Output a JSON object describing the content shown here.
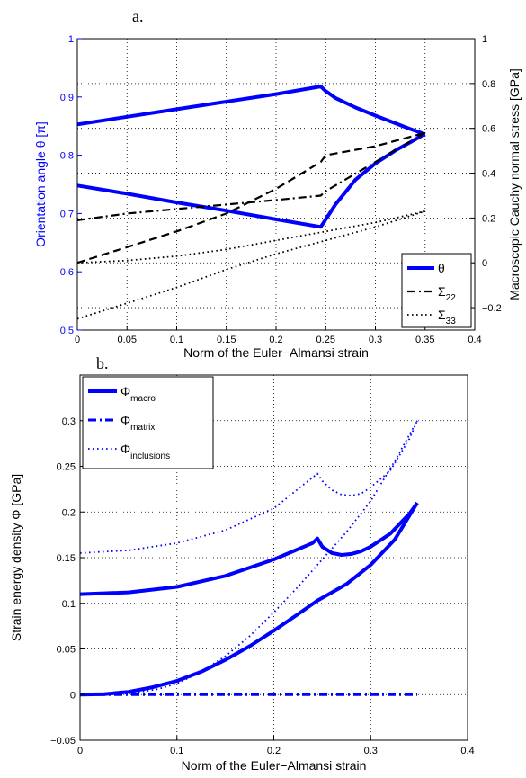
{
  "panels": {
    "a": {
      "letter": "a."
    },
    "b": {
      "letter": "b."
    }
  },
  "colors": {
    "blue": "#0000ff",
    "black": "#000000"
  },
  "chart_data": [
    {
      "type": "line",
      "panel": "a",
      "xlabel": "Norm of the Euler−Almansi strain",
      "ylabel_left": "Orientation angle  θ [π]",
      "ylabel_right": "Macroscopic Cauchy normal stress [GPa]",
      "xlim": [
        0,
        0.4
      ],
      "ylim_left": [
        0.5,
        1
      ],
      "ylim_right": [
        -0.3,
        1
      ],
      "x_ticks": [
        "0",
        "0.05",
        "0.1",
        "0.15",
        "0.2",
        "0.25",
        "0.3",
        "0.35",
        "0.4"
      ],
      "y_left_ticks": [
        "0.5",
        "0.6",
        "0.7",
        "0.8",
        "0.9",
        "1"
      ],
      "y_right_ticks": [
        "−0.2",
        "0",
        "0.2",
        "0.4",
        "0.6",
        "0.8",
        "1"
      ],
      "grid": "dotted",
      "legend_position": "bottom-right",
      "legend": [
        {
          "label": "θ",
          "sub": ""
        },
        {
          "label": "Σ",
          "sub": "22"
        },
        {
          "label": "Σ",
          "sub": "33"
        }
      ],
      "series": [
        {
          "name": "θ branch 1",
          "axis": "left",
          "color": "#0000ff",
          "style": "solid",
          "width": 4,
          "x": [
            0,
            0.05,
            0.1,
            0.15,
            0.2,
            0.245,
            0.25,
            0.26,
            0.28,
            0.3,
            0.32,
            0.335,
            0.345,
            0.35
          ],
          "y": [
            0.853,
            0.866,
            0.879,
            0.892,
            0.905,
            0.918,
            0.91,
            0.898,
            0.882,
            0.868,
            0.855,
            0.845,
            0.839,
            0.836
          ]
        },
        {
          "name": "θ branch 2",
          "axis": "left",
          "color": "#0000ff",
          "style": "solid",
          "width": 4,
          "x": [
            0,
            0.05,
            0.1,
            0.15,
            0.2,
            0.245,
            0.25,
            0.26,
            0.28,
            0.3,
            0.32,
            0.335,
            0.345,
            0.35
          ],
          "y": [
            0.748,
            0.734,
            0.719,
            0.705,
            0.69,
            0.677,
            0.69,
            0.716,
            0.758,
            0.786,
            0.808,
            0.822,
            0.832,
            0.836
          ]
        },
        {
          "name": "Σ 22 a",
          "axis": "right",
          "color": "#000000",
          "style": "dashdot",
          "width": 2.2,
          "x": [
            0,
            0.05,
            0.1,
            0.15,
            0.2,
            0.245,
            0.25,
            0.3,
            0.35
          ],
          "y": [
            0.19,
            0.22,
            0.24,
            0.26,
            0.28,
            0.3,
            0.32,
            0.45,
            0.58
          ]
        },
        {
          "name": "Σ 22 b",
          "axis": "right",
          "color": "#000000",
          "style": "dashed",
          "width": 2.2,
          "x": [
            0,
            0.05,
            0.1,
            0.15,
            0.2,
            0.245,
            0.25,
            0.3,
            0.35
          ],
          "y": [
            0.0,
            0.07,
            0.14,
            0.22,
            0.33,
            0.45,
            0.48,
            0.52,
            0.58
          ]
        },
        {
          "name": "Σ 33 a",
          "axis": "right",
          "color": "#000000",
          "style": "dotted",
          "width": 1.8,
          "x": [
            0,
            0.05,
            0.1,
            0.15,
            0.2,
            0.25,
            0.3,
            0.35
          ],
          "y": [
            -0.25,
            -0.18,
            -0.11,
            -0.03,
            0.04,
            0.1,
            0.16,
            0.23
          ]
        },
        {
          "name": "Σ 33 b",
          "axis": "right",
          "color": "#000000",
          "style": "dotted",
          "width": 1.8,
          "x": [
            0,
            0.05,
            0.1,
            0.15,
            0.2,
            0.25,
            0.3,
            0.35
          ],
          "y": [
            0.0,
            0.01,
            0.03,
            0.06,
            0.1,
            0.14,
            0.18,
            0.23
          ]
        }
      ]
    },
    {
      "type": "line",
      "panel": "b",
      "xlabel": "Norm of the Euler−Almansi strain",
      "ylabel": "Strain energy density Φ [GPa]",
      "xlim": [
        0,
        0.4
      ],
      "ylim": [
        -0.05,
        0.35
      ],
      "x_ticks": [
        "0",
        "0.1",
        "0.2",
        "0.3",
        "0.4"
      ],
      "y_ticks": [
        "−0.05",
        "0",
        "0.05",
        "0.1",
        "0.15",
        "0.2",
        "0.25",
        "0.3"
      ],
      "grid": "dotted",
      "legend_position": "top-left",
      "legend": [
        {
          "label": "Φ",
          "sub": "macro"
        },
        {
          "label": "Φ",
          "sub": "matrix"
        },
        {
          "label": "Φ",
          "sub": "inclusions"
        }
      ],
      "series": [
        {
          "name": "Φ macro upper",
          "color": "#0000ff",
          "style": "solid",
          "width": 4,
          "x": [
            0,
            0.05,
            0.1,
            0.15,
            0.2,
            0.24,
            0.245,
            0.25,
            0.26,
            0.27,
            0.28,
            0.29,
            0.3,
            0.32,
            0.34,
            0.348
          ],
          "y": [
            0.11,
            0.112,
            0.118,
            0.13,
            0.148,
            0.166,
            0.171,
            0.162,
            0.155,
            0.153,
            0.154,
            0.157,
            0.162,
            0.176,
            0.198,
            0.21
          ]
        },
        {
          "name": "Φ macro lower",
          "color": "#0000ff",
          "style": "solid",
          "width": 4,
          "x": [
            0,
            0.025,
            0.05,
            0.075,
            0.1,
            0.125,
            0.15,
            0.175,
            0.2,
            0.225,
            0.245,
            0.25,
            0.275,
            0.3,
            0.325,
            0.348
          ],
          "y": [
            0.0,
            0.0005,
            0.003,
            0.008,
            0.015,
            0.025,
            0.038,
            0.053,
            0.07,
            0.088,
            0.103,
            0.106,
            0.121,
            0.142,
            0.17,
            0.21
          ]
        },
        {
          "name": "Φ matrix",
          "color": "#0000ff",
          "style": "dashdot",
          "width": 3,
          "x": [
            0,
            0.1,
            0.2,
            0.3,
            0.348
          ],
          "y": [
            0.0,
            0.0,
            0.0,
            0.0,
            0.0
          ]
        },
        {
          "name": "Φ inclusions upper",
          "color": "#0000ff",
          "style": "dotted",
          "width": 1.8,
          "x": [
            0,
            0.05,
            0.1,
            0.15,
            0.2,
            0.245,
            0.25,
            0.26,
            0.27,
            0.28,
            0.29,
            0.3,
            0.32,
            0.34,
            0.348
          ],
          "y": [
            0.155,
            0.158,
            0.166,
            0.18,
            0.204,
            0.242,
            0.234,
            0.224,
            0.219,
            0.218,
            0.22,
            0.227,
            0.245,
            0.28,
            0.3
          ]
        },
        {
          "name": "Φ inclusions lower",
          "color": "#0000ff",
          "style": "dotted",
          "width": 1.8,
          "x": [
            0,
            0.05,
            0.08,
            0.1,
            0.125,
            0.15,
            0.175,
            0.2,
            0.225,
            0.245,
            0.25,
            0.275,
            0.3,
            0.325,
            0.348
          ],
          "y": [
            0.0,
            0.001,
            0.006,
            0.012,
            0.025,
            0.042,
            0.064,
            0.09,
            0.118,
            0.142,
            0.148,
            0.178,
            0.212,
            0.256,
            0.3
          ]
        }
      ]
    }
  ]
}
